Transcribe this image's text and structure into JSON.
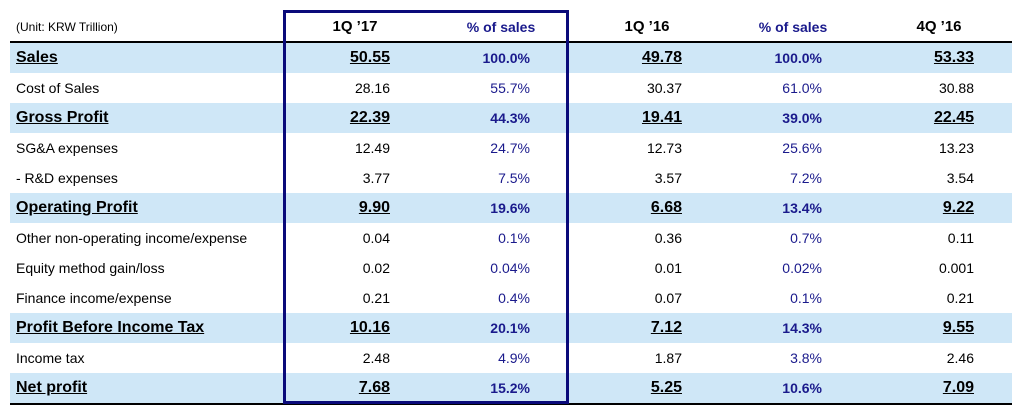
{
  "unit_note": "(Unit: KRW Trillion)",
  "columns": [
    "1Q ’17",
    "% of sales",
    "1Q ’16",
    "% of sales",
    "4Q ’16"
  ],
  "rows": [
    {
      "label": "Sales",
      "highlight": true,
      "values": [
        "50.55",
        "100.0%",
        "49.78",
        "100.0%",
        "53.33"
      ]
    },
    {
      "label": "Cost of Sales",
      "highlight": false,
      "values": [
        "28.16",
        "55.7%",
        "30.37",
        "61.0%",
        "30.88"
      ]
    },
    {
      "label": "Gross Profit",
      "highlight": true,
      "values": [
        "22.39",
        "44.3%",
        "19.41",
        "39.0%",
        "22.45"
      ]
    },
    {
      "label": "SG&A expenses",
      "highlight": false,
      "values": [
        "12.49",
        "24.7%",
        "12.73",
        "25.6%",
        "13.23"
      ]
    },
    {
      "label": " - R&D expenses",
      "highlight": false,
      "values": [
        "3.77",
        "7.5%",
        "3.57",
        "7.2%",
        "3.54"
      ]
    },
    {
      "label": "Operating Profit",
      "highlight": true,
      "values": [
        "9.90",
        "19.6%",
        "6.68",
        "13.4%",
        "9.22"
      ]
    },
    {
      "label": "Other non-operating income/expense",
      "highlight": false,
      "values": [
        "0.04",
        "0.1%",
        "0.36",
        "0.7%",
        "0.11"
      ]
    },
    {
      "label": "Equity method gain/loss",
      "highlight": false,
      "values": [
        "0.02",
        "0.04%",
        "0.01",
        "0.02%",
        "0.001"
      ]
    },
    {
      "label": "Finance income/expense",
      "highlight": false,
      "values": [
        "0.21",
        "0.4%",
        "0.07",
        "0.1%",
        "0.21"
      ]
    },
    {
      "label": "Profit Before Income Tax",
      "highlight": true,
      "values": [
        "10.16",
        "20.1%",
        "7.12",
        "14.3%",
        "9.55"
      ]
    },
    {
      "label": "Income tax",
      "highlight": false,
      "values": [
        "2.48",
        "4.9%",
        "1.87",
        "3.8%",
        "2.46"
      ]
    },
    {
      "label": "Net profit",
      "highlight": true,
      "values": [
        "7.68",
        "15.2%",
        "5.25",
        "10.6%",
        "7.09"
      ]
    }
  ],
  "colors": {
    "highlight_row": "#cfe7f7",
    "percent_text": "#1a1a8c",
    "focus_box": "#0a0a7a"
  }
}
